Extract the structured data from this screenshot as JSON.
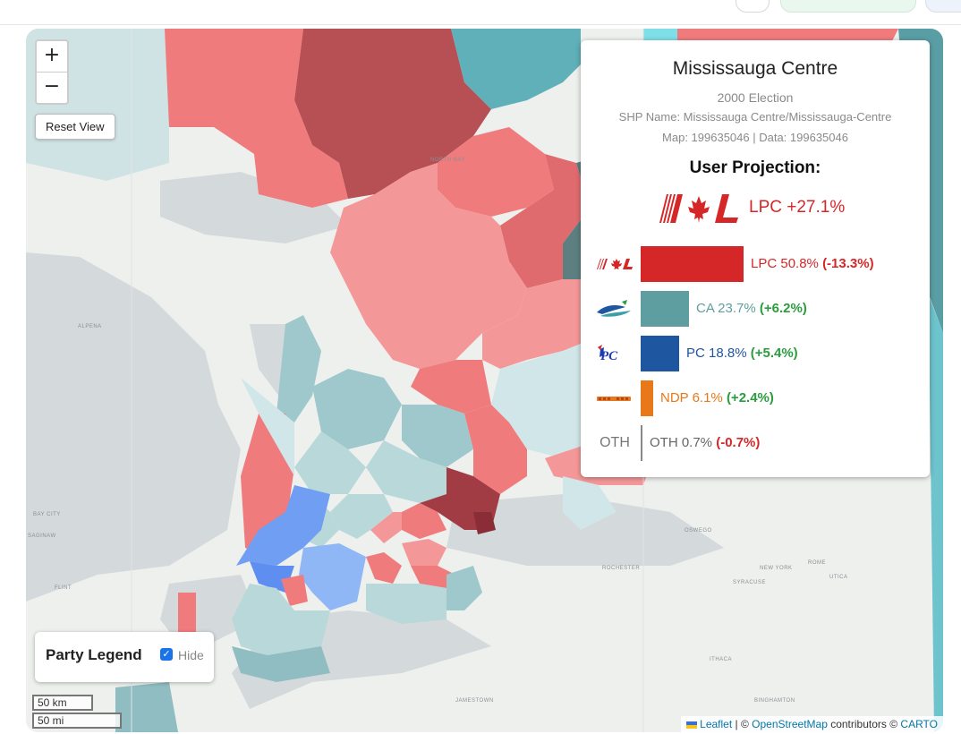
{
  "map": {
    "zoom_in_label": "+",
    "zoom_out_label": "−",
    "reset_label": "Reset View",
    "basemap_labels": [
      "Alpena",
      "Bay City",
      "SAGINAW",
      "FLINT",
      "ROCHESTER",
      "SYRACUSE",
      "NEW YORK",
      "UTICA",
      "ITHACA",
      "BINGHAMTON",
      "JAMESTOWN",
      "Oswego",
      "Rome",
      "NORTH BAY"
    ],
    "legend": {
      "title": "Party Legend",
      "hide_label": "Hide",
      "checked": true
    },
    "scale": {
      "km": "50 km",
      "mi": "50 mi"
    },
    "attribution": {
      "leaflet": "Leaflet",
      "sep1": " | © ",
      "osm": "OpenStreetMap",
      "mid": " contributors © ",
      "carto": "CARTO"
    }
  },
  "info": {
    "riding": "Mississauga Centre",
    "election": "2000 Election",
    "shp_name": "SHP Name: Mississauga Centre/Mississauga-Centre",
    "map_ids": "Map: 199635046 | Data: 199635046",
    "projection_heading": "User Projection:",
    "projection_result": "LPC +27.1%",
    "parties": [
      {
        "code": "LPC",
        "logo": "lpc-logo",
        "share": "LPC 50.8%",
        "change": "(-13.3%)",
        "value": 50.8,
        "color": "#d62728",
        "change_dir": "neg"
      },
      {
        "code": "CA",
        "logo": "ca-logo",
        "share": "CA 23.7%",
        "change": "(+6.2%)",
        "value": 23.7,
        "color": "#5f9ea0",
        "change_dir": "pos"
      },
      {
        "code": "PC",
        "logo": "pc-logo",
        "share": "PC 18.8%",
        "change": "(+5.4%)",
        "value": 18.8,
        "color": "#1f56a0",
        "change_dir": "pos"
      },
      {
        "code": "NDP",
        "logo": "ndp-logo",
        "share": "NDP 6.1%",
        "change": "(+2.4%)",
        "value": 6.1,
        "color": "#e8781a",
        "change_dir": "pos"
      },
      {
        "code": "OTH",
        "logo": "OTH",
        "share": "OTH 0.7%",
        "change": "(-0.7%)",
        "value": 0.7,
        "color": "#888888",
        "change_dir": "neg"
      }
    ]
  }
}
